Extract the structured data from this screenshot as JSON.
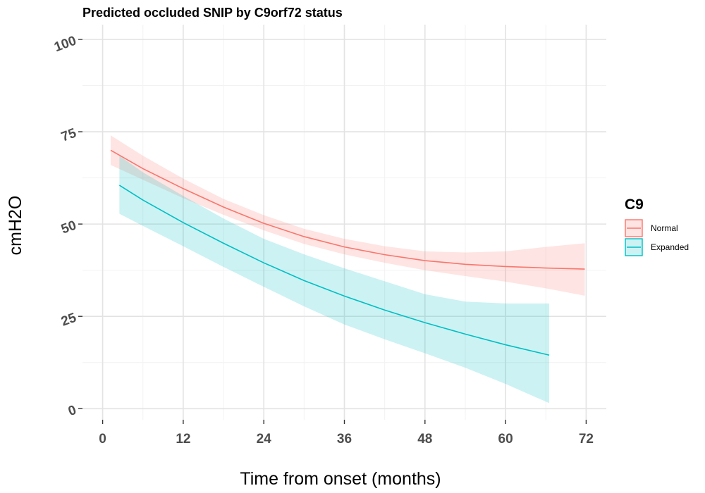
{
  "chart_data": {
    "type": "line",
    "title": "Predicted occluded SNIP by C9orf72 status",
    "xlabel": "Time from onset (months)",
    "ylabel": "cmH2O",
    "xlim": [
      -3,
      75
    ],
    "ylim": [
      -3,
      104
    ],
    "x_ticks": [
      0,
      12,
      24,
      36,
      48,
      60,
      72
    ],
    "y_ticks": [
      0,
      25,
      50,
      75,
      100
    ],
    "grid": true,
    "legend": {
      "title": "C9",
      "position": "right"
    },
    "series": [
      {
        "name": "Normal",
        "color": "#F8766D",
        "fill_color": "#F8766D",
        "x": [
          1.2,
          6,
          12,
          18,
          24,
          30,
          36,
          42,
          48,
          54,
          60,
          66,
          71.8
        ],
        "y": [
          70.0,
          65.0,
          59.6,
          54.6,
          50.2,
          46.6,
          43.8,
          41.7,
          40.1,
          39.1,
          38.5,
          38.1,
          37.8
        ],
        "lower": [
          66.0,
          62.0,
          57.0,
          52.5,
          48.3,
          44.6,
          41.8,
          39.5,
          37.5,
          35.9,
          34.4,
          32.6,
          30.6
        ],
        "upper": [
          74.0,
          68.5,
          62.3,
          56.8,
          52.4,
          48.7,
          46.0,
          44.0,
          42.6,
          42.3,
          42.6,
          43.8,
          44.8
        ]
      },
      {
        "name": "Expanded",
        "color": "#00BFC4",
        "fill_color": "#00BFC4",
        "x": [
          2.5,
          6,
          12,
          18,
          24,
          30,
          36,
          42,
          48,
          54,
          60,
          66.5
        ],
        "y": [
          60.5,
          56.5,
          50.4,
          44.8,
          39.5,
          34.7,
          30.5,
          26.7,
          23.3,
          20.2,
          17.3,
          14.5
        ],
        "lower": [
          52.8,
          49.5,
          44.0,
          38.4,
          33.0,
          27.7,
          22.8,
          18.8,
          15.0,
          11.1,
          6.7,
          1.5
        ],
        "upper": [
          68.5,
          64.0,
          57.6,
          51.5,
          46.0,
          41.8,
          38.0,
          34.5,
          31.0,
          29.0,
          28.5,
          28.5
        ]
      }
    ]
  }
}
